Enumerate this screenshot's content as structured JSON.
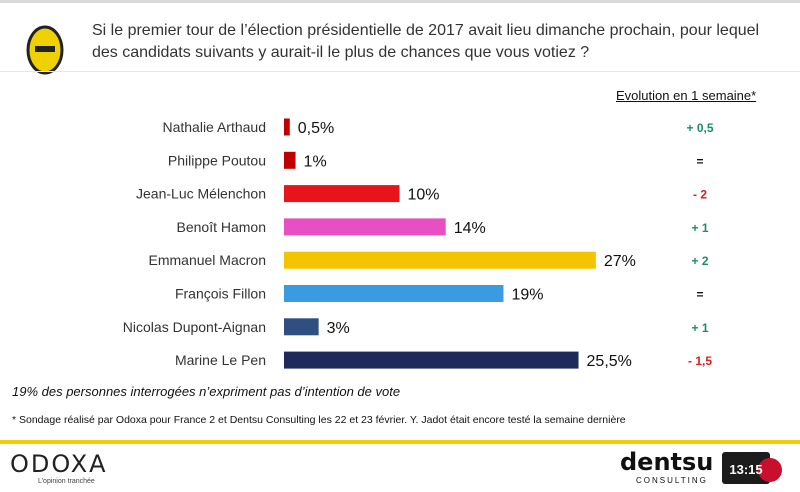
{
  "question": "Si le premier tour de l’élection présidentielle de 2017 avait lieu dimanche prochain, pour lequel des candidats suivants y aurait-il le plus de chances que vous votiez ?",
  "evolution_header": "Evolution en 1 semaine*",
  "chart_data": {
    "type": "bar",
    "orientation": "horizontal",
    "categories": [
      "Nathalie Arthaud",
      "Philippe Poutou",
      "Jean-Luc Mélenchon",
      "Benoît Hamon",
      "Emmanuel Macron",
      "François Fillon",
      "Nicolas Dupont-Aignan",
      "Marine Le Pen"
    ],
    "values": [
      0.5,
      1,
      10,
      14,
      27,
      19,
      3,
      25.5
    ],
    "value_labels": [
      "0,5%",
      "1%",
      "10%",
      "14%",
      "27%",
      "19%",
      "3%",
      "25,5%"
    ],
    "colors": [
      "#c00000",
      "#c00000",
      "#e8141c",
      "#e84fc4",
      "#f5c400",
      "#3a9be0",
      "#2f4f80",
      "#1f2a5c"
    ],
    "evolution": [
      "+ 0,5",
      "=",
      "- 2",
      "+ 1",
      "+ 2",
      "=",
      "+ 1",
      "- 1,5"
    ],
    "evolution_colors": [
      "#1f8a6e",
      "#111111",
      "#d42020",
      "#1f8a6e",
      "#1f8a6e",
      "#111111",
      "#1f8a6e",
      "#d42020"
    ],
    "xlim": [
      0,
      30
    ]
  },
  "note": "19% des personnes interrogées n’expriment pas d’intention de vote",
  "footnote": "* Sondage réalisé par Odoxa pour France 2 et Dentsu Consulting les 22 et 23 février. Y. Jadot était encore testé la semaine dernière",
  "footer": {
    "odoxa": "ODOXA",
    "odoxa_tagline": "L’opinion tranchée",
    "dentsu": "dentsu",
    "consulting": "CONSULTING",
    "badge": "13:15"
  },
  "colors": {
    "accent": "#efd000"
  }
}
